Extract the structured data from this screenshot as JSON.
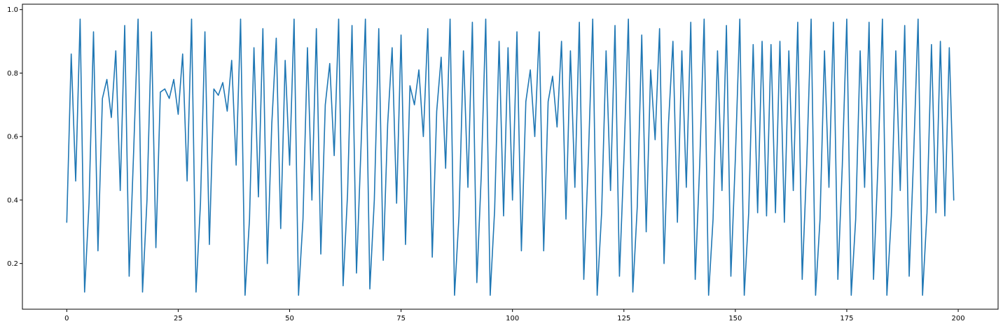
{
  "chart_data": {
    "type": "line",
    "title": "",
    "xlabel": "",
    "ylabel": "",
    "xlim": [
      -9.95,
      208.95
    ],
    "ylim": [
      0.056,
      1.017
    ],
    "grid": false,
    "legend": "none",
    "line_color": "#1f77b4",
    "x_ticks": [
      {
        "value": 0,
        "label": "0"
      },
      {
        "value": 25,
        "label": "25"
      },
      {
        "value": 50,
        "label": "50"
      },
      {
        "value": 75,
        "label": "75"
      },
      {
        "value": 100,
        "label": "100"
      },
      {
        "value": 125,
        "label": "125"
      },
      {
        "value": 150,
        "label": "150"
      },
      {
        "value": 175,
        "label": "175"
      },
      {
        "value": 200,
        "label": "200"
      }
    ],
    "y_ticks": [
      {
        "value": 0.2,
        "label": "0.2"
      },
      {
        "value": 0.4,
        "label": "0.4"
      },
      {
        "value": 0.6,
        "label": "0.6"
      },
      {
        "value": 0.8,
        "label": "0.8"
      },
      {
        "value": 1.0,
        "label": "1.0"
      }
    ],
    "series": [
      {
        "x_start": 0,
        "x_step": 1,
        "values": [
          0.33,
          0.86,
          0.46,
          0.97,
          0.11,
          0.39,
          0.93,
          0.24,
          0.72,
          0.78,
          0.66,
          0.87,
          0.43,
          0.95,
          0.16,
          0.55,
          0.97,
          0.11,
          0.4,
          0.93,
          0.25,
          0.74,
          0.75,
          0.72,
          0.78,
          0.67,
          0.86,
          0.46,
          0.97,
          0.11,
          0.39,
          0.93,
          0.26,
          0.75,
          0.73,
          0.77,
          0.68,
          0.84,
          0.51,
          0.97,
          0.1,
          0.34,
          0.88,
          0.41,
          0.94,
          0.2,
          0.64,
          0.91,
          0.31,
          0.84,
          0.51,
          0.97,
          0.1,
          0.34,
          0.88,
          0.4,
          0.94,
          0.23,
          0.7,
          0.83,
          0.54,
          0.97,
          0.13,
          0.42,
          0.95,
          0.17,
          0.56,
          0.97,
          0.12,
          0.4,
          0.94,
          0.21,
          0.64,
          0.88,
          0.39,
          0.92,
          0.26,
          0.76,
          0.7,
          0.81,
          0.6,
          0.94,
          0.22,
          0.68,
          0.85,
          0.5,
          0.97,
          0.1,
          0.35,
          0.87,
          0.44,
          0.96,
          0.14,
          0.48,
          0.97,
          0.1,
          0.37,
          0.9,
          0.35,
          0.88,
          0.4,
          0.93,
          0.24,
          0.71,
          0.81,
          0.6,
          0.93,
          0.24,
          0.71,
          0.79,
          0.63,
          0.9,
          0.34,
          0.87,
          0.44,
          0.96,
          0.15,
          0.52,
          0.97,
          0.1,
          0.36,
          0.87,
          0.43,
          0.95,
          0.16,
          0.53,
          0.97,
          0.11,
          0.38,
          0.92,
          0.3,
          0.81,
          0.59,
          0.94,
          0.2,
          0.64,
          0.9,
          0.33,
          0.87,
          0.44,
          0.96,
          0.15,
          0.51,
          0.97,
          0.1,
          0.34,
          0.87,
          0.43,
          0.95,
          0.16,
          0.53,
          0.97,
          0.1,
          0.36,
          0.89,
          0.36,
          0.9,
          0.35,
          0.89,
          0.36,
          0.9,
          0.33,
          0.87,
          0.43,
          0.96,
          0.15,
          0.51,
          0.97,
          0.1,
          0.34,
          0.87,
          0.44,
          0.96,
          0.15,
          0.51,
          0.97,
          0.1,
          0.34,
          0.87,
          0.44,
          0.96,
          0.15,
          0.51,
          0.97,
          0.1,
          0.35,
          0.87,
          0.43,
          0.95,
          0.16,
          0.54,
          0.97,
          0.1,
          0.36,
          0.89,
          0.36,
          0.9,
          0.35,
          0.88,
          0.4
        ]
      }
    ]
  }
}
